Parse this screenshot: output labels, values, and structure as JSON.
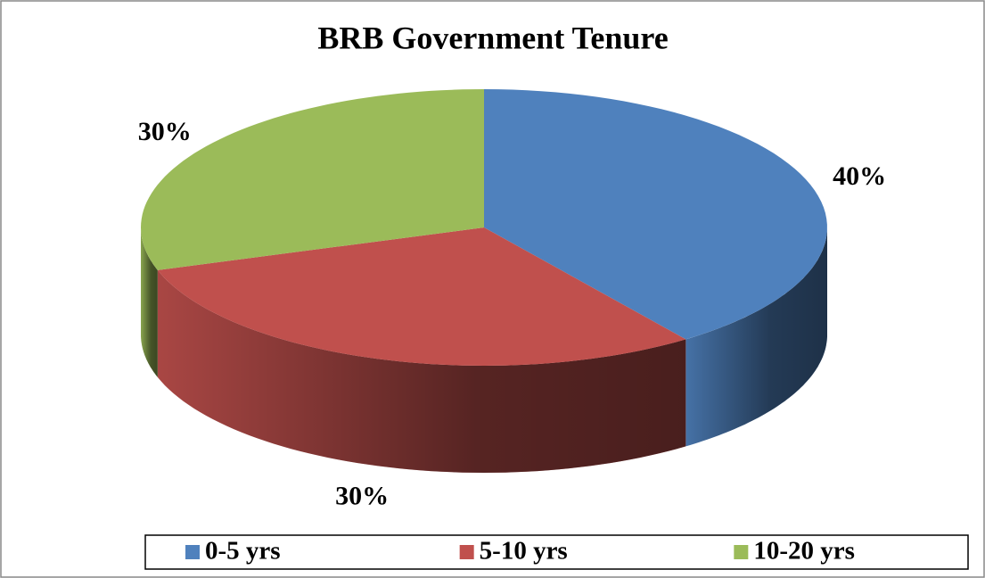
{
  "chart_data": {
    "type": "pie",
    "title": "BRB Government Tenure",
    "categories": [
      "0-5 yrs",
      "5-10 yrs",
      "10-20 yrs"
    ],
    "values": [
      40,
      30,
      30
    ],
    "value_labels": [
      "40%",
      "30%",
      "30%"
    ],
    "colors": [
      "#4f81bd",
      "#c0504d",
      "#9bbb59"
    ],
    "legend": "bottom"
  }
}
